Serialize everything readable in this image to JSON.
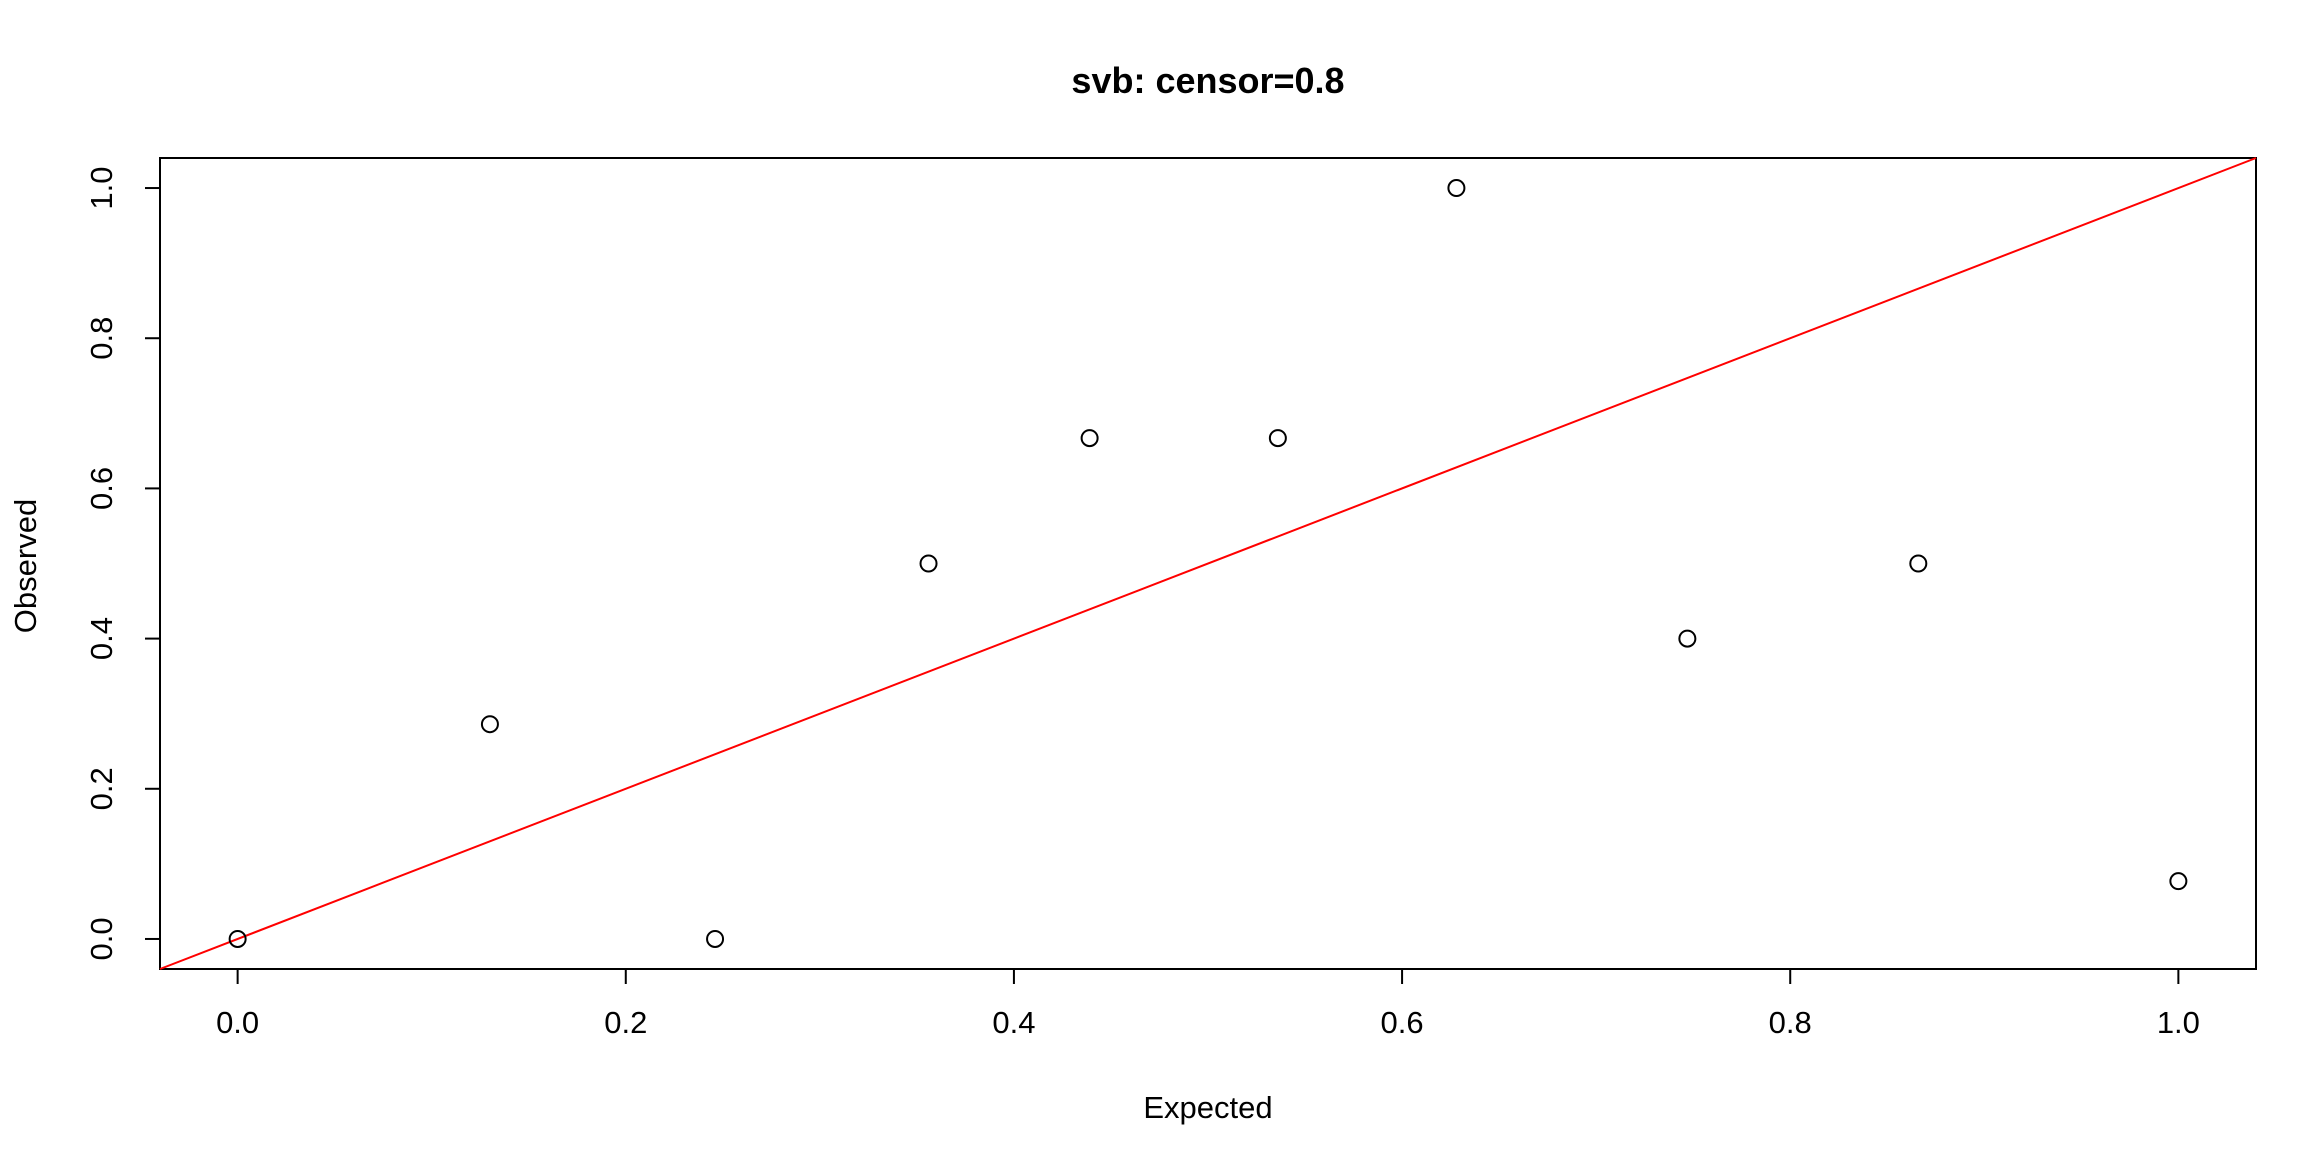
{
  "chart_data": {
    "type": "scatter",
    "title": "svb: censor=0.8",
    "xlabel": "Expected",
    "ylabel": "Observed",
    "xlim": [
      -0.04,
      1.04
    ],
    "ylim": [
      -0.04,
      1.04
    ],
    "x_ticks": [
      "0.0",
      "0.2",
      "0.4",
      "0.6",
      "0.8",
      "1.0"
    ],
    "y_ticks": [
      "0.0",
      "0.2",
      "0.4",
      "0.6",
      "0.8",
      "1.0"
    ],
    "points": [
      {
        "x": 0.0,
        "y": 0.0
      },
      {
        "x": 0.13,
        "y": 0.286
      },
      {
        "x": 0.246,
        "y": 0.0
      },
      {
        "x": 0.356,
        "y": 0.5
      },
      {
        "x": 0.439,
        "y": 0.667
      },
      {
        "x": 0.536,
        "y": 0.667
      },
      {
        "x": 0.628,
        "y": 1.0
      },
      {
        "x": 0.747,
        "y": 0.4
      },
      {
        "x": 0.866,
        "y": 0.5
      },
      {
        "x": 1.0,
        "y": 0.077
      }
    ],
    "reference_line": {
      "slope": 1,
      "intercept": 0,
      "color": "#ff0000"
    },
    "grid": false,
    "legend": "none",
    "point_marker": "open-circle",
    "point_color": "#000000"
  }
}
